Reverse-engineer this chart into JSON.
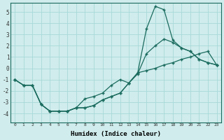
{
  "xlabel": "Humidex (Indice chaleur)",
  "x_values": [
    0,
    1,
    2,
    3,
    4,
    5,
    6,
    7,
    8,
    9,
    10,
    11,
    12,
    13,
    14,
    15,
    16,
    17,
    18,
    19,
    20,
    21,
    22,
    23
  ],
  "line1": [
    -1.0,
    -1.5,
    -1.5,
    -3.2,
    -3.8,
    -3.8,
    -3.8,
    -3.5,
    -3.5,
    -3.3,
    -2.8,
    -2.5,
    -2.2,
    -1.3,
    -0.4,
    3.5,
    5.5,
    5.2,
    2.5,
    1.8,
    1.5,
    0.8,
    0.5,
    0.3
  ],
  "line2": [
    -1.0,
    -1.5,
    -1.5,
    -3.2,
    -3.8,
    -3.8,
    -3.8,
    -3.5,
    -2.7,
    -2.5,
    -2.2,
    -1.5,
    -1.0,
    -1.3,
    -0.5,
    1.3,
    2.0,
    2.6,
    2.3,
    1.8,
    1.5,
    0.8,
    0.5,
    0.3
  ],
  "line3": [
    -1.0,
    -1.5,
    -1.5,
    -3.2,
    -3.8,
    -3.8,
    -3.8,
    -3.5,
    -3.5,
    -3.3,
    -2.8,
    -2.5,
    -2.2,
    -1.3,
    -0.4,
    -0.2,
    0.0,
    0.3,
    0.5,
    0.8,
    1.0,
    1.3,
    1.5,
    0.3
  ],
  "line_color": "#1a6b5e",
  "bg_color": "#d0ecec",
  "grid_color": "#a8d8d8",
  "ylim": [
    -4.8,
    5.8
  ],
  "yticks": [
    -4,
    -3,
    -2,
    -1,
    0,
    1,
    2,
    3,
    4,
    5
  ],
  "xlim": [
    -0.5,
    23.5
  ],
  "xticks": [
    0,
    1,
    2,
    3,
    4,
    5,
    6,
    7,
    8,
    9,
    10,
    11,
    12,
    13,
    14,
    15,
    16,
    17,
    18,
    19,
    20,
    21,
    22,
    23
  ]
}
